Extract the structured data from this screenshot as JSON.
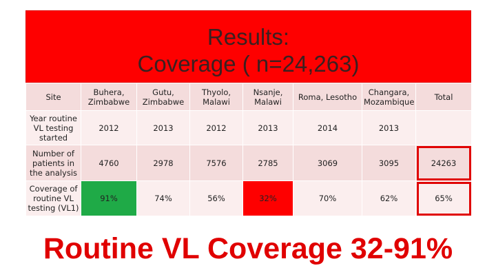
{
  "header": {
    "title_lines": [
      "Results:",
      "Coverage ( n=24,263)"
    ]
  },
  "table": {
    "header": [
      "Site",
      "Buhera, Zimbabwe",
      "Gutu, Zimbabwe",
      "Thyolo, Malawi",
      "Nsanje, Malawi",
      "Roma, Lesotho",
      "Changara, Mozambique",
      "Total"
    ],
    "rows": [
      [
        "Year routine VL testing started",
        "2012",
        "2013",
        "2012",
        "2013",
        "2014",
        "2013"
      ],
      [
        "Number of patients in the analysis",
        "4760",
        "2978",
        "7576",
        "2785",
        "3069",
        "3095",
        "24263"
      ],
      [
        "Coverage of routine VL testing (VL1)",
        "91%",
        "74%",
        "56%",
        "32%",
        "70%",
        "62%",
        "65%"
      ]
    ]
  },
  "footer": {
    "text": "Routine VL Coverage 32-91%"
  }
}
